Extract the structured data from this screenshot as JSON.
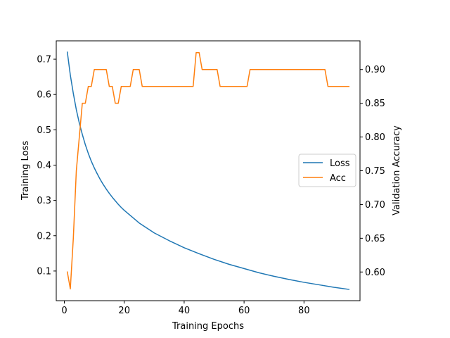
{
  "chart_data": {
    "type": "line",
    "xlabel": "Training Epochs",
    "ylabel_left": "Training Loss",
    "ylabel_right": "Validation Accuracy",
    "xlim": [
      -2.7,
      98.7
    ],
    "ylim_left": [
      0.016,
      0.752
    ],
    "ylim_right": [
      0.5575,
      0.9425
    ],
    "x_ticks": [
      0,
      20,
      40,
      60,
      80
    ],
    "y_ticks_left": [
      0.1,
      0.2,
      0.3,
      0.4,
      0.5,
      0.6,
      0.7
    ],
    "y_ticks_right": [
      0.6,
      0.65,
      0.7,
      0.75,
      0.8,
      0.85,
      0.9
    ],
    "y_tick_labels_left": [
      "0.1",
      "0.2",
      "0.3",
      "0.4",
      "0.5",
      "0.6",
      "0.7"
    ],
    "y_tick_labels_right": [
      "0.60",
      "0.65",
      "0.70",
      "0.75",
      "0.80",
      "0.85",
      "0.90"
    ],
    "legend_position": "center-right",
    "grid": false,
    "series": [
      {
        "name": "Loss",
        "axis": "left",
        "color": "#1f77b4",
        "x": [
          1,
          2,
          3,
          4,
          5,
          6,
          7,
          8,
          9,
          10,
          11,
          12,
          13,
          14,
          15,
          16,
          17,
          18,
          19,
          20,
          25,
          30,
          35,
          40,
          45,
          50,
          55,
          60,
          65,
          70,
          75,
          80,
          85,
          90,
          95
        ],
        "y": [
          0.72,
          0.655,
          0.603,
          0.557,
          0.519,
          0.487,
          0.458,
          0.433,
          0.411,
          0.392,
          0.375,
          0.359,
          0.345,
          0.332,
          0.32,
          0.309,
          0.299,
          0.289,
          0.28,
          0.272,
          0.236,
          0.208,
          0.186,
          0.166,
          0.149,
          0.133,
          0.119,
          0.107,
          0.095,
          0.085,
          0.076,
          0.068,
          0.061,
          0.054,
          0.048
        ]
      },
      {
        "name": "Acc",
        "axis": "right",
        "color": "#ff7f0e",
        "x": [
          1,
          2,
          3,
          4,
          5,
          6,
          7,
          8,
          9,
          10,
          11,
          12,
          13,
          14,
          15,
          16,
          17,
          18,
          19,
          20,
          21,
          22,
          23,
          24,
          25,
          26,
          27,
          43,
          44,
          45,
          46,
          51,
          52,
          61,
          62,
          87,
          88,
          95
        ],
        "y": [
          0.6,
          0.575,
          0.65,
          0.75,
          0.8,
          0.85,
          0.85,
          0.875,
          0.875,
          0.9,
          0.9,
          0.9,
          0.9,
          0.9,
          0.875,
          0.875,
          0.85,
          0.85,
          0.875,
          0.875,
          0.875,
          0.875,
          0.9,
          0.9,
          0.9,
          0.875,
          0.875,
          0.875,
          0.925,
          0.925,
          0.9,
          0.9,
          0.875,
          0.875,
          0.9,
          0.9,
          0.875,
          0.875
        ]
      }
    ]
  }
}
